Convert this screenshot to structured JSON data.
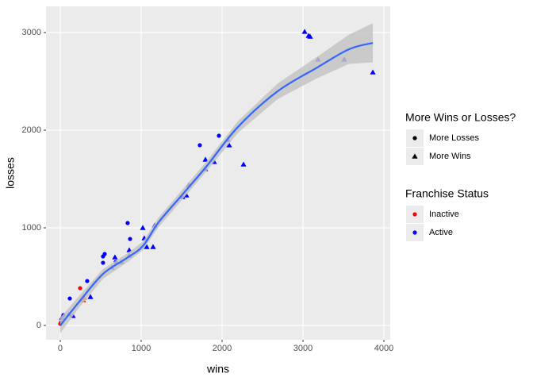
{
  "chart_data": {
    "type": "scatter",
    "x_label": "wins",
    "y_label": "losses",
    "xlim": [
      -176,
      4078
    ],
    "ylim": [
      -146,
      3268
    ],
    "xticks": [
      0,
      1000,
      2000,
      3000,
      4000
    ],
    "yticks": [
      0,
      1000,
      2000,
      3000
    ],
    "grid": true,
    "series": [
      {
        "shape": "triangle",
        "color": "#0000ff",
        "x": [
          3020,
          3069,
          3088,
          3186,
          3510,
          3863,
          2265,
          2069,
          2088,
          1794,
          1902,
          1794,
          1588,
          1559,
          1510,
          1167,
          1147,
          1069,
          1039,
          1020,
          853,
          853,
          755,
          637,
          676,
          373,
          157,
          108,
          20
        ],
        "values": [
          3008,
          2967,
          2959,
          2724,
          2724,
          2593,
          1650,
          1902,
          1846,
          1699,
          1675,
          1602,
          1439,
          1333,
          1317,
          1024,
          805,
          805,
          894,
          1000,
          715,
          772,
          650,
          593,
          699,
          293,
          98,
          114,
          81
        ]
      },
      {
        "shape": "triangle",
        "color": "#ff0000",
        "x": [
          284,
          294
        ],
        "values": [
          260,
          285
        ]
      },
      {
        "shape": "circle",
        "color": "#0000ff",
        "x": [
          1961,
          1725,
          833,
          863,
          529,
          549,
          529,
          686,
          333,
          118,
          39,
          20
        ],
        "values": [
          1943,
          1846,
          1049,
          886,
          707,
          732,
          642,
          650,
          455,
          276,
          106,
          33
        ]
      },
      {
        "shape": "circle",
        "color": "#ff0000",
        "x": [
          245,
          0,
          10
        ],
        "values": [
          382,
          16,
          33
        ]
      }
    ],
    "smooth": {
      "color": "#3366ff",
      "band_color": "#c4c4c4",
      "x": [
        0,
        235,
        529,
        824,
        1020,
        1216,
        1510,
        1804,
        2196,
        2686,
        3176,
        3569,
        3863
      ],
      "values": [
        0,
        244,
        528,
        691,
        813,
        1057,
        1341,
        1626,
        2033,
        2398,
        2642,
        2829,
        2894
      ],
      "upper": [
        80,
        304,
        578,
        736,
        858,
        1107,
        1391,
        1676,
        2093,
        2478,
        2752,
        2979,
        3094
      ],
      "lower": [
        -80,
        184,
        478,
        646,
        768,
        1007,
        1291,
        1576,
        1973,
        2318,
        2532,
        2679,
        2694
      ]
    },
    "legends": [
      {
        "title": "More Wins or Losses?",
        "entries": [
          {
            "label": "More Losses",
            "shape": "circle",
            "color": "#000000"
          },
          {
            "label": "More Wins",
            "shape": "triangle",
            "color": "#000000"
          }
        ]
      },
      {
        "title": "Franchise Status",
        "entries": [
          {
            "label": "Inactive",
            "shape": "circle",
            "color": "#ff0000"
          },
          {
            "label": "Active",
            "shape": "circle",
            "color": "#0000ff"
          }
        ]
      }
    ]
  }
}
